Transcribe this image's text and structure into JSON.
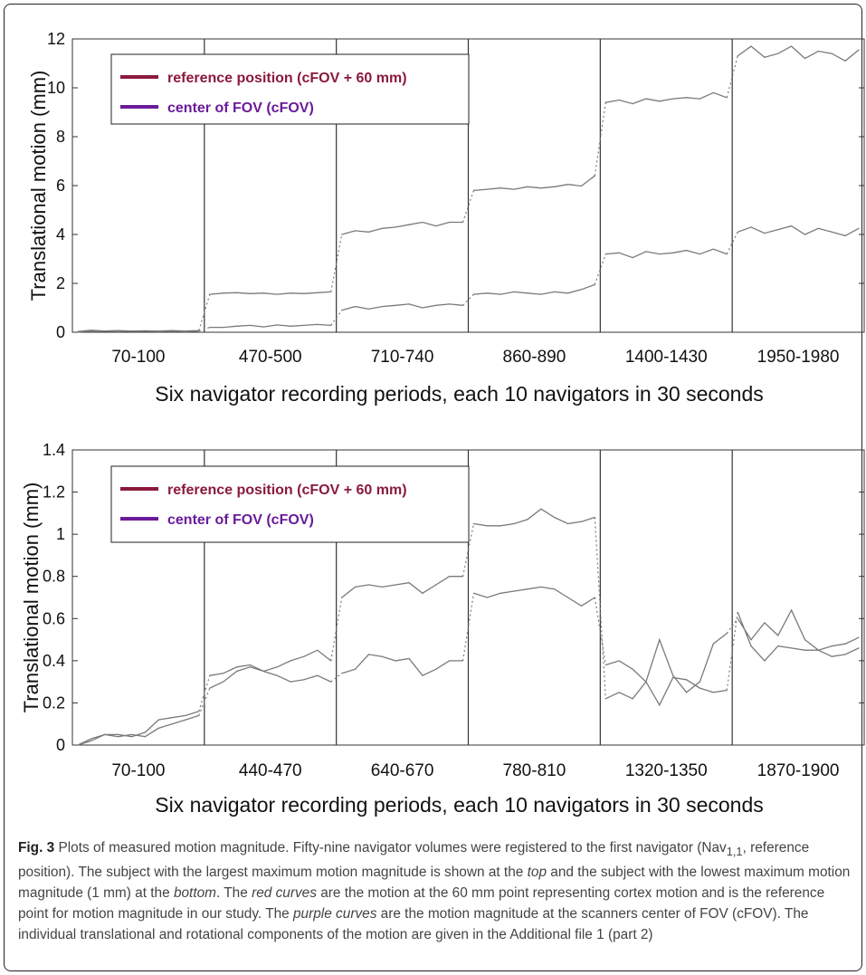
{
  "chart_data": [
    {
      "type": "line",
      "title": "",
      "xlabel": "Six navigator recording periods, each 10 navigators in 30 seconds",
      "ylabel": "Translational motion (mm)",
      "ylim": [
        0,
        12
      ],
      "yticks": [
        "0",
        "2",
        "4",
        "6",
        "8",
        "10",
        "12"
      ],
      "categories": [
        "70-100",
        "470-500",
        "710-740",
        "860-890",
        "1400-1430",
        "1950-1980"
      ],
      "grid": false,
      "legend_position": "top-left",
      "legend": [
        {
          "label": "reference position (cFOV + 60 mm)",
          "color": "#8b1a3c"
        },
        {
          "label": "center of FOV (cFOV)",
          "color": "#6a1b9a"
        }
      ],
      "series": [
        {
          "name": "reference position (cFOV + 60 mm)",
          "values": [
            [
              0.03,
              0.08,
              0.05,
              0.07,
              0.05,
              0.06,
              0.05,
              0.07,
              0.05,
              0.07
            ],
            [
              1.55,
              1.6,
              1.62,
              1.58,
              1.6,
              1.55,
              1.6,
              1.58,
              1.62,
              1.65
            ],
            [
              4.0,
              4.15,
              4.1,
              4.25,
              4.3,
              4.4,
              4.5,
              4.35,
              4.5,
              4.5
            ],
            [
              5.8,
              5.85,
              5.9,
              5.85,
              5.95,
              5.9,
              5.95,
              6.05,
              5.98,
              6.4
            ],
            [
              9.4,
              9.5,
              9.35,
              9.55,
              9.45,
              9.55,
              9.6,
              9.55,
              9.8,
              9.6
            ],
            [
              11.3,
              11.7,
              11.25,
              11.4,
              11.7,
              11.2,
              11.5,
              11.4,
              11.1,
              11.55
            ]
          ]
        },
        {
          "name": "center of FOV (cFOV)",
          "values": [
            [
              0.01,
              0.05,
              0.04,
              0.03,
              0.05,
              0.04,
              0.03,
              0.04,
              0.03,
              0.05
            ],
            [
              0.2,
              0.2,
              0.25,
              0.28,
              0.22,
              0.3,
              0.25,
              0.28,
              0.32,
              0.28
            ],
            [
              0.9,
              1.05,
              0.95,
              1.05,
              1.1,
              1.15,
              1.0,
              1.1,
              1.15,
              1.1
            ],
            [
              1.55,
              1.6,
              1.55,
              1.65,
              1.6,
              1.55,
              1.65,
              1.6,
              1.75,
              1.95
            ],
            [
              3.2,
              3.25,
              3.05,
              3.3,
              3.2,
              3.25,
              3.35,
              3.2,
              3.4,
              3.2
            ],
            [
              4.1,
              4.3,
              4.05,
              4.2,
              4.35,
              4.0,
              4.25,
              4.1,
              3.95,
              4.25
            ]
          ]
        }
      ]
    },
    {
      "type": "line",
      "title": "",
      "xlabel": "Six navigator recording periods, each 10 navigators in 30 seconds",
      "ylabel": "Translational motion (mm)",
      "ylim": [
        0,
        1.4
      ],
      "yticks": [
        "0",
        "0.2",
        "0.4",
        "0.6",
        "0.8",
        "1",
        "1.2",
        "1.4"
      ],
      "categories": [
        "70-100",
        "440-470",
        "640-670",
        "780-810",
        "1320-1350",
        "1870-1900"
      ],
      "grid": false,
      "legend_position": "top-left",
      "legend": [
        {
          "label": "reference position (cFOV + 60 mm)",
          "color": "#8b1a3c"
        },
        {
          "label": "center of FOV (cFOV)",
          "color": "#6a1b9a"
        }
      ],
      "series": [
        {
          "name": "reference position (cFOV + 60 mm)",
          "values": [
            [
              0.0,
              0.03,
              0.05,
              0.04,
              0.05,
              0.04,
              0.08,
              0.1,
              0.12,
              0.14
            ],
            [
              0.27,
              0.3,
              0.35,
              0.37,
              0.35,
              0.37,
              0.4,
              0.42,
              0.45,
              0.4
            ],
            [
              0.7,
              0.75,
              0.76,
              0.75,
              0.76,
              0.77,
              0.72,
              0.76,
              0.8,
              0.8
            ],
            [
              1.05,
              1.04,
              1.04,
              1.05,
              1.07,
              1.12,
              1.08,
              1.05,
              1.06,
              1.08
            ],
            [
              0.22,
              0.25,
              0.22,
              0.3,
              0.5,
              0.33,
              0.25,
              0.3,
              0.48,
              0.53
            ],
            [
              0.6,
              0.5,
              0.58,
              0.52,
              0.64,
              0.5,
              0.45,
              0.42,
              0.43,
              0.46
            ]
          ]
        },
        {
          "name": "center of FOV (cFOV)",
          "values": [
            [
              0.0,
              0.02,
              0.05,
              0.05,
              0.04,
              0.06,
              0.12,
              0.13,
              0.14,
              0.16
            ],
            [
              0.33,
              0.34,
              0.37,
              0.38,
              0.35,
              0.33,
              0.3,
              0.31,
              0.33,
              0.3
            ],
            [
              0.34,
              0.36,
              0.43,
              0.42,
              0.4,
              0.41,
              0.33,
              0.36,
              0.4,
              0.4
            ],
            [
              0.72,
              0.7,
              0.72,
              0.73,
              0.74,
              0.75,
              0.74,
              0.7,
              0.66,
              0.7
            ],
            [
              0.38,
              0.4,
              0.36,
              0.3,
              0.19,
              0.32,
              0.31,
              0.27,
              0.25,
              0.26
            ],
            [
              0.63,
              0.47,
              0.4,
              0.47,
              0.46,
              0.45,
              0.45,
              0.47,
              0.48,
              0.51
            ]
          ]
        }
      ]
    }
  ],
  "caption": {
    "fig_label": "Fig. 3",
    "text_1": " Plots of measured motion magnitude. Fifty-nine navigator volumes were registered to the first navigator (Nav",
    "subscript": "1,1",
    "text_2": ", reference position). The subject with the largest maximum motion magnitude is shown at the ",
    "italic_1": "top",
    "text_3": " and the subject with the lowest maximum motion magnitude (1 mm) at the ",
    "italic_2": "bottom",
    "text_4": ". The ",
    "italic_3": "red curves",
    "text_5": " are the motion at the 60 mm point representing cortex motion and is the reference point for motion magnitude in our study. The ",
    "italic_4": "purple curves",
    "text_6": " are the motion magnitude at the scanners center of FOV (cFOV). The individual translational and rotational components of the motion are given in the Additional file 1 (part 2)"
  }
}
